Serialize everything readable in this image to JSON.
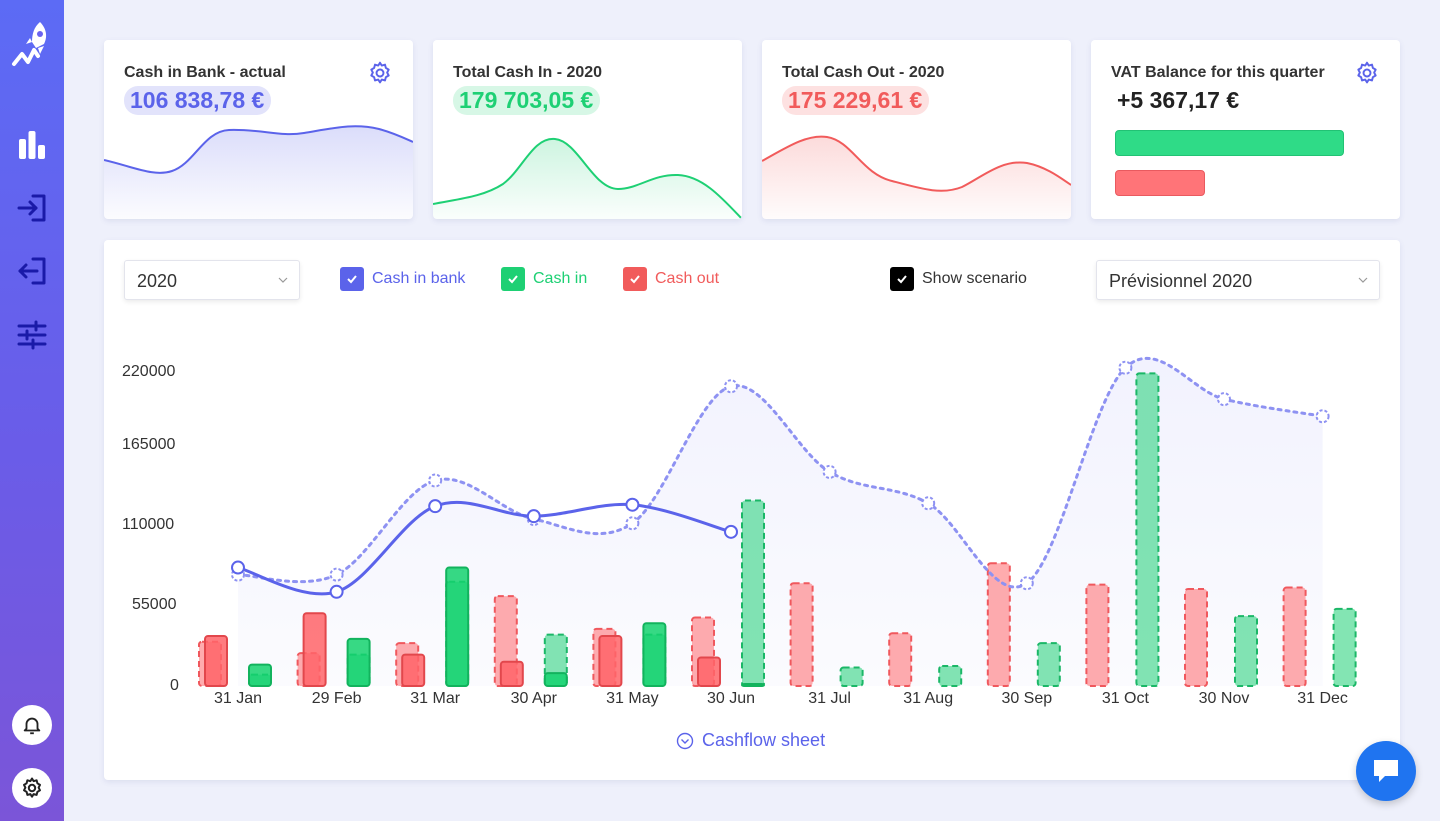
{
  "sidebar": {
    "items": [
      {
        "icon": "rocket-logo"
      },
      {
        "icon": "bar-chart-icon"
      },
      {
        "icon": "cash-in-icon"
      },
      {
        "icon": "cash-out-icon"
      },
      {
        "icon": "sliders-icon"
      }
    ],
    "bottom": [
      {
        "icon": "bell-icon"
      },
      {
        "icon": "gear-icon"
      }
    ]
  },
  "kpis": [
    {
      "title": "Cash in Bank - actual",
      "value": "106 838,78 €",
      "color": "#5b63ea",
      "bg": "#e2e3fb"
    },
    {
      "title": "Total Cash In - 2020",
      "value": "179 703,05 €",
      "color": "#1ed074",
      "bg": "#d7f7e6"
    },
    {
      "title": "Total Cash Out - 2020",
      "value": "175 229,61 €",
      "color": "#f15b5b",
      "bg": "#fde1e1"
    },
    {
      "title": "VAT Balance for this quarter",
      "value": "+5 367,17 €",
      "color": "#222222"
    }
  ],
  "vat": {
    "in_color": "#2fdb87",
    "out_color": "#ff7478"
  },
  "controls": {
    "year": "2020",
    "scenario_select": "Prévisionnel 2020",
    "checks": [
      {
        "label": "Cash in bank",
        "color": "#5b63ea",
        "checked": true
      },
      {
        "label": "Cash in",
        "color": "#1ed074",
        "checked": true
      },
      {
        "label": "Cash out",
        "color": "#f15b5b",
        "checked": true
      },
      {
        "label": "Show scenario",
        "color": "#000000",
        "checked": true
      }
    ]
  },
  "chart_data": {
    "type": "bar",
    "categories": [
      "31 Jan",
      "29 Feb",
      "31 Mar",
      "30 Apr",
      "31 May",
      "30 Jun",
      "31 Jul",
      "31 Aug",
      "30 Sep",
      "31 Oct",
      "30 Nov",
      "31 Dec"
    ],
    "yticks": [
      "220000",
      "165000",
      "110000",
      "55000",
      "0"
    ],
    "ylim": [
      0,
      220000
    ],
    "series": [
      {
        "name": "Cash in bank",
        "kind": "line",
        "values": [
          83000,
          66000,
          126000,
          119000,
          127000,
          108000,
          null,
          null,
          null,
          null,
          null,
          null
        ]
      },
      {
        "name": "Cash in bank",
        "kind": "line-scenario",
        "values": [
          78000,
          78000,
          144000,
          117000,
          114000,
          210000,
          150000,
          128000,
          72000,
          223000,
          201000,
          189000
        ]
      },
      {
        "name": "Cash out",
        "kind": "bar",
        "values": [
          35000,
          51000,
          22000,
          17000,
          35000,
          20000,
          null,
          null,
          null,
          null,
          null,
          null
        ]
      },
      {
        "name": "Cash in",
        "kind": "bar",
        "values": [
          15000,
          33000,
          83000,
          9000,
          44000,
          0,
          null,
          null,
          null,
          null,
          null,
          null
        ]
      },
      {
        "name": "Cash out",
        "kind": "bar-scenario",
        "values": [
          31000,
          23000,
          30000,
          63000,
          40000,
          48000,
          72000,
          37000,
          86000,
          71000,
          68000,
          69000
        ]
      },
      {
        "name": "Cash in",
        "kind": "bar-scenario",
        "values": [
          8000,
          22000,
          73000,
          36000,
          36000,
          130000,
          13000,
          14000,
          30000,
          219000,
          49000,
          54000
        ]
      }
    ]
  },
  "footer": {
    "link": "Cashflow sheet"
  }
}
